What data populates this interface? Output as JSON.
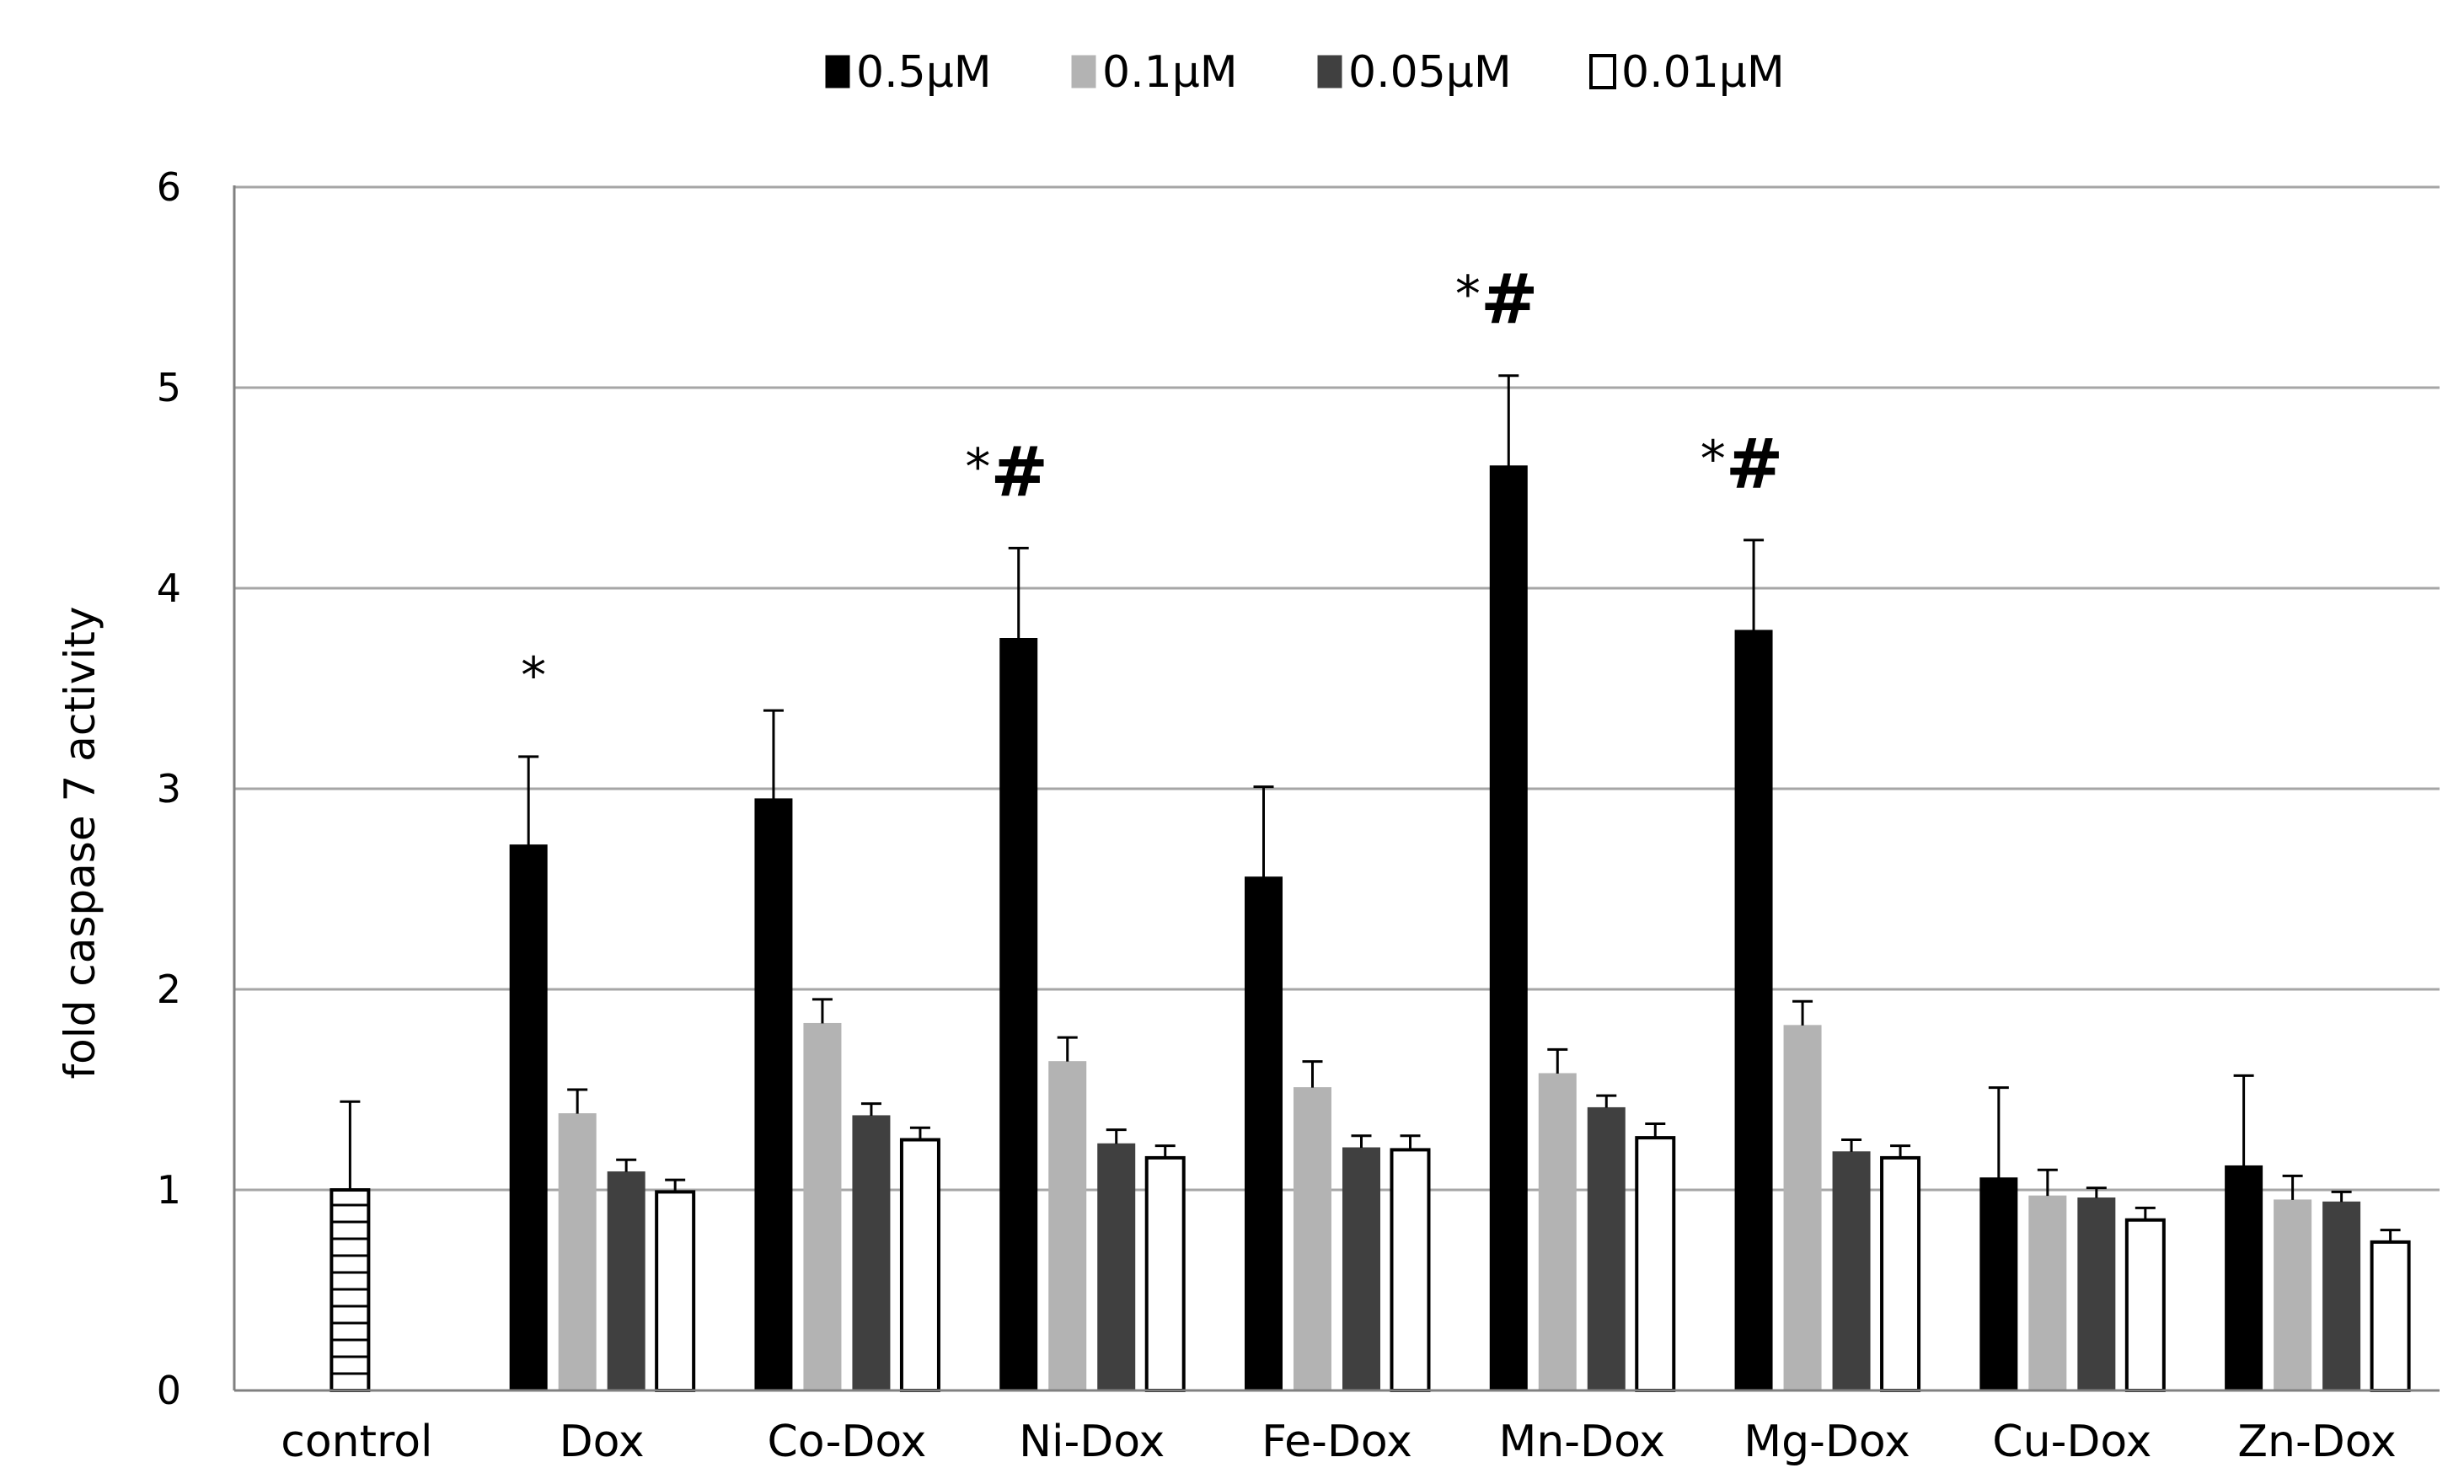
{
  "chart_data": {
    "type": "bar",
    "title": "",
    "xlabel": "",
    "ylabel": "fold caspase 7 activity",
    "ylim": [
      0,
      6
    ],
    "yticks": [
      "0",
      "1",
      "2",
      "3",
      "4",
      "5",
      "6"
    ],
    "grid": true,
    "legend_position": "top-center",
    "categories": [
      "control",
      "Dox",
      "Co-Dox",
      "Ni-Dox",
      "Fe-Dox",
      "Mn-Dox",
      "Mg-Dox",
      "Cu-Dox",
      "Zn-Dox"
    ],
    "control": {
      "value": 1.0,
      "error": 0.44,
      "pattern": "grid"
    },
    "series": [
      {
        "name": "0.5μM",
        "color": "#000000",
        "values": [
          null,
          2.72,
          2.95,
          3.75,
          2.56,
          4.61,
          3.79,
          1.06,
          1.12
        ],
        "errors": [
          null,
          0.44,
          0.44,
          0.45,
          0.45,
          0.45,
          0.45,
          0.45,
          0.45
        ]
      },
      {
        "name": "0.1μM",
        "color": "#b3b3b3",
        "values": [
          null,
          1.38,
          1.83,
          1.64,
          1.51,
          1.58,
          1.82,
          0.97,
          0.95
        ],
        "errors": [
          null,
          0.12,
          0.12,
          0.12,
          0.13,
          0.12,
          0.12,
          0.13,
          0.12
        ]
      },
      {
        "name": "0.05μM",
        "color": "#404040",
        "values": [
          null,
          1.09,
          1.37,
          1.23,
          1.21,
          1.41,
          1.19,
          0.96,
          0.94
        ],
        "errors": [
          null,
          0.06,
          0.06,
          0.07,
          0.06,
          0.06,
          0.06,
          0.05,
          0.05
        ]
      },
      {
        "name": "0.01μM",
        "color": "#ffffff",
        "values": [
          null,
          0.99,
          1.25,
          1.16,
          1.2,
          1.26,
          1.16,
          0.85,
          0.74
        ],
        "errors": [
          null,
          0.06,
          0.06,
          0.06,
          0.07,
          0.07,
          0.06,
          0.06,
          0.06
        ]
      }
    ],
    "annotations": [
      {
        "category": "Dox",
        "star": "*",
        "hash": ""
      },
      {
        "category": "Ni-Dox",
        "star": "*",
        "hash": "#"
      },
      {
        "category": "Mn-Dox",
        "star": "*",
        "hash": "#"
      },
      {
        "category": "Mg-Dox",
        "star": "*",
        "hash": "#"
      }
    ]
  }
}
